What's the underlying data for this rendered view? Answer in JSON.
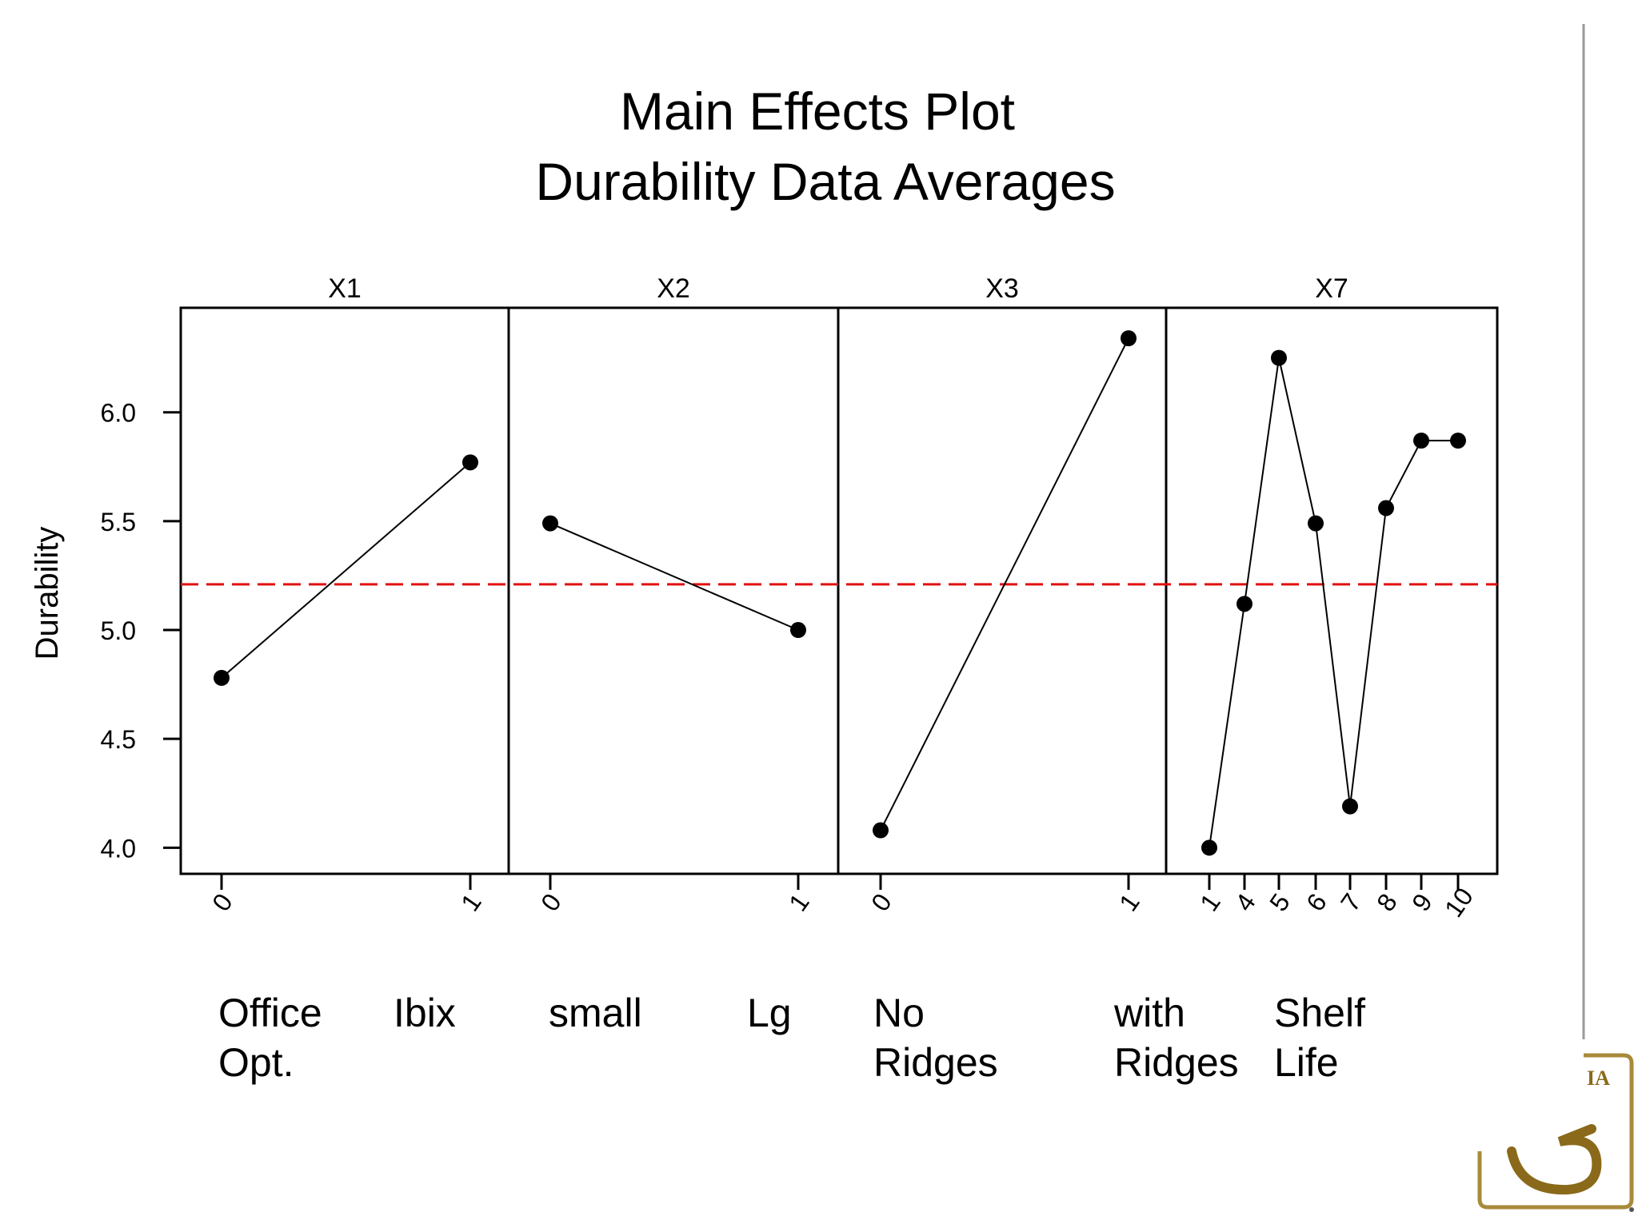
{
  "chart_data": {
    "type": "line",
    "title": "Main Effects Plot",
    "subtitle": "Durability Data Averages",
    "ylabel": "Durability",
    "ylim": [
      3.88,
      6.48
    ],
    "yticks": [
      4.0,
      4.5,
      5.0,
      5.5,
      6.0
    ],
    "ytick_labels": [
      "4.0",
      "4.5",
      "5.0",
      "5.5",
      "6.0"
    ],
    "reference_line": {
      "value": 5.21,
      "color": "#e01010",
      "style": "dashed"
    },
    "panels": [
      {
        "name": "X1",
        "categories": [
          "0",
          "1"
        ],
        "values": [
          4.78,
          5.77
        ],
        "labels": [
          {
            "lines": [
              "Office",
              "Opt."
            ]
          },
          {
            "lines": [
              "Ibix"
            ]
          }
        ]
      },
      {
        "name": "X2",
        "categories": [
          "0",
          "1"
        ],
        "values": [
          5.49,
          5.0
        ],
        "labels": [
          {
            "lines": [
              "small"
            ]
          },
          {
            "lines": [
              "Lg"
            ]
          }
        ]
      },
      {
        "name": "X3",
        "categories": [
          "0",
          "1"
        ],
        "values": [
          4.08,
          6.34
        ],
        "labels": [
          {
            "lines": [
              "No",
              "Ridges"
            ]
          },
          {
            "lines": [
              "with",
              "Ridges"
            ]
          }
        ]
      },
      {
        "name": "X7",
        "categories": [
          "1",
          "4",
          "5",
          "6",
          "7",
          "8",
          "9",
          "10"
        ],
        "values": [
          4.0,
          5.12,
          6.25,
          5.49,
          4.19,
          5.56,
          5.87,
          5.87
        ],
        "labels": [
          {
            "lines": [
              "Shelf",
              "Life"
            ]
          }
        ]
      }
    ]
  },
  "colors": {
    "line": "#000000",
    "reference": "#e01010",
    "logo": "#a88a3a"
  },
  "logo": {
    "text": "IA"
  }
}
